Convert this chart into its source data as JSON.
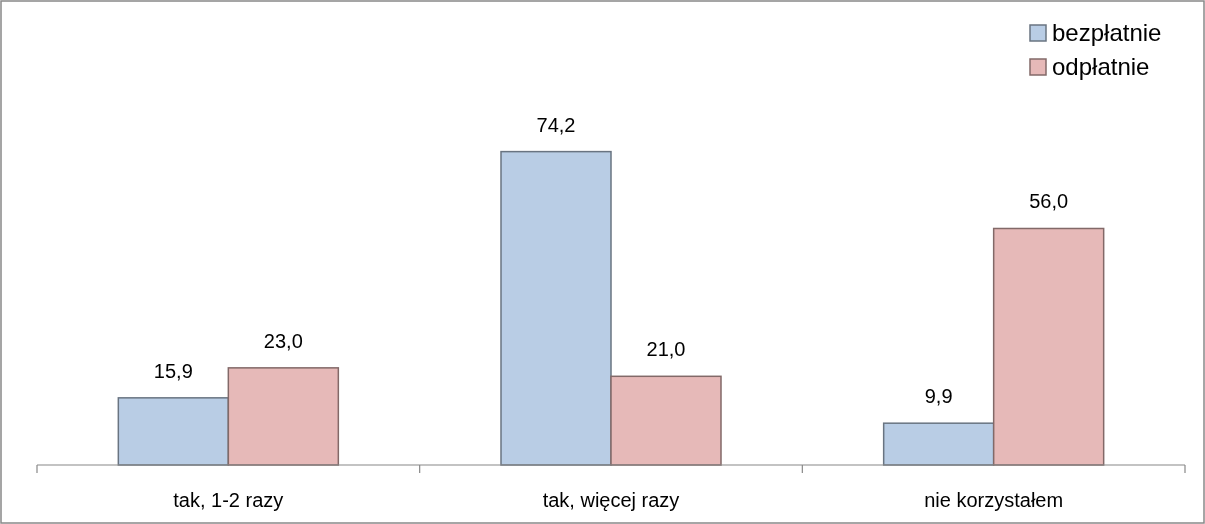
{
  "chart_data": {
    "type": "bar",
    "categories": [
      "tak, 1-2 razy",
      "tak, więcej razy",
      "nie korzystałem"
    ],
    "series": [
      {
        "name": "bezpłatnie",
        "color": "#b9cde5",
        "values": [
          15.9,
          74.2,
          9.9
        ],
        "value_labels": [
          "15,9",
          "74,2",
          "9,9"
        ]
      },
      {
        "name": "odpłatnie",
        "color": "#e6b9b8",
        "values": [
          23.0,
          21.0,
          56.0
        ],
        "value_labels": [
          "23,0",
          "21,0",
          "56,0"
        ]
      }
    ],
    "legend": "top right"
  }
}
